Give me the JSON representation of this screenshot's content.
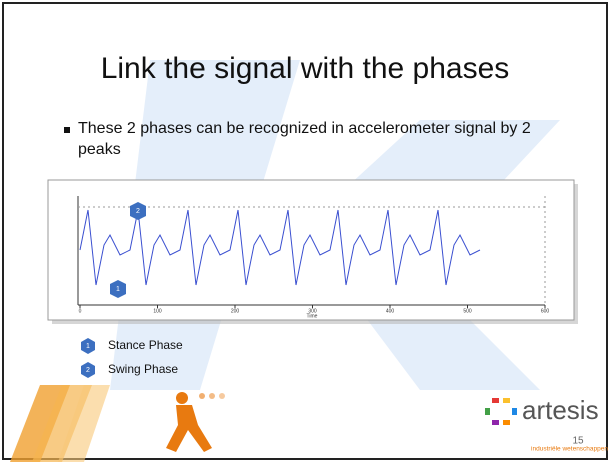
{
  "slide": {
    "title": "Link the signal with the phases",
    "bullet": "These 2 phases can be recognized in accelerometer signal by 2 peaks",
    "figure": {
      "x_label": "Time",
      "x_ticks": [
        "0",
        "100",
        "200",
        "300",
        "400",
        "500",
        "600"
      ],
      "badge_top": "2",
      "badge_bottom": "1"
    },
    "legend": [
      {
        "badge": "1",
        "label": "Stance Phase"
      },
      {
        "badge": "2",
        "label": "Swing Phase"
      }
    ],
    "logo": {
      "name": "artesis",
      "subtitle": "industriële wetenschappen"
    },
    "page_number": "15"
  }
}
